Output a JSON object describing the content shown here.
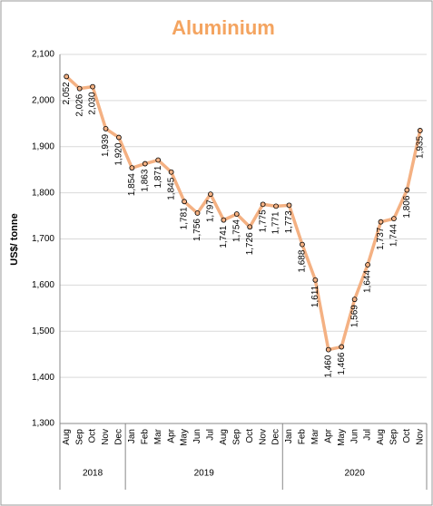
{
  "chart_data": {
    "type": "line",
    "title": "Aluminium",
    "y_label": "US$/ tonne",
    "categories": [
      "Aug",
      "Sep",
      "Oct",
      "Nov",
      "Dec",
      "Jan",
      "Feb",
      "Mar",
      "Apr",
      "May",
      "Jun",
      "Jul",
      "Aug",
      "Sep",
      "Oct",
      "Nov",
      "Dec",
      "Jan",
      "Feb",
      "Mar",
      "Apr",
      "May",
      "Jun",
      "Jul",
      "Aug",
      "Sep",
      "Oct",
      "Nov"
    ],
    "groups": [
      {
        "label": "2018",
        "count": 5
      },
      {
        "label": "2019",
        "count": 12
      },
      {
        "label": "2020",
        "count": 11
      }
    ],
    "series": [
      {
        "name": "Aluminium",
        "color": "#f4b183",
        "values": [
          2052,
          2026,
          2030,
          1939,
          1920,
          1854,
          1863,
          1871,
          1845,
          1781,
          1756,
          1797,
          1741,
          1754,
          1726,
          1775,
          1771,
          1773,
          1688,
          1611,
          1460,
          1466,
          1569,
          1644,
          1737,
          1744,
          1806,
          1935
        ],
        "value_labels": [
          "2,052",
          "2,026",
          "2,030",
          "1,939",
          "1,920",
          "1,854",
          "1,863",
          "1,871",
          "1,845",
          "1,781",
          "1,756",
          "1,797",
          "1,741",
          "1,754",
          "1,726",
          "1,775",
          "1,771",
          "1,773",
          "1,688",
          "1,611",
          "1,460",
          "1,466",
          "1,569",
          "1,644",
          "1,737",
          "1,744",
          "1,806",
          "1,935"
        ]
      }
    ],
    "ylim": [
      1300,
      2100
    ],
    "yticks": [
      {
        "value": 1300,
        "label": "1,300"
      },
      {
        "value": 1400,
        "label": "1,400"
      },
      {
        "value": 1500,
        "label": "1,500"
      },
      {
        "value": 1600,
        "label": "1,600"
      },
      {
        "value": 1700,
        "label": "1,700"
      },
      {
        "value": 1800,
        "label": "1,800"
      },
      {
        "value": 1900,
        "label": "1,900"
      },
      {
        "value": 2000,
        "label": "2,000"
      },
      {
        "value": 2100,
        "label": "2,100"
      }
    ],
    "grid": true
  }
}
